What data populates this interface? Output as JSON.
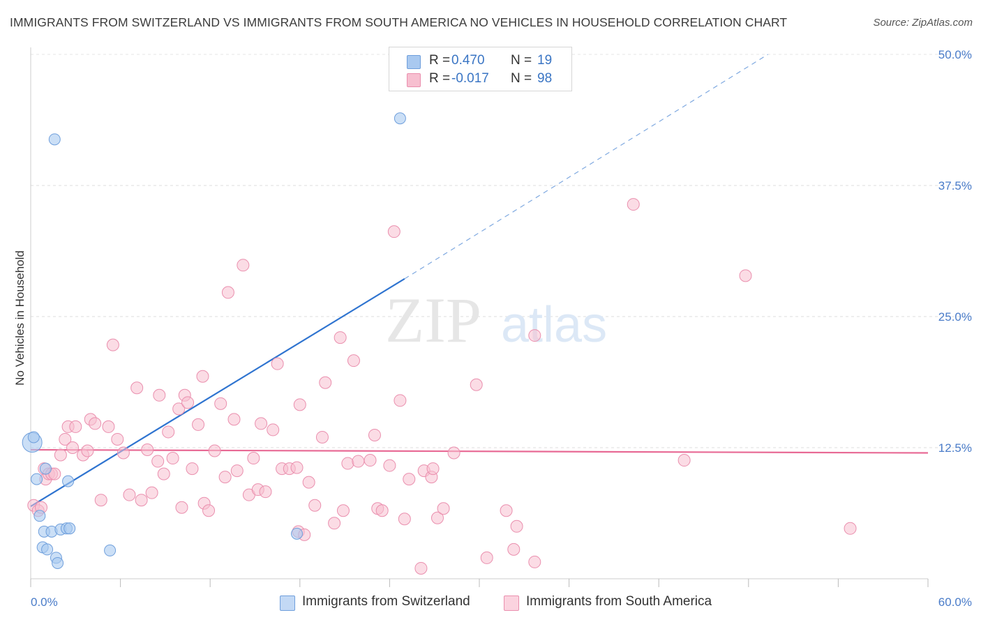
{
  "title": "IMMIGRANTS FROM SWITZERLAND VS IMMIGRANTS FROM SOUTH AMERICA NO VEHICLES IN HOUSEHOLD CORRELATION CHART",
  "source": "Source: ZipAtlas.com",
  "watermark": {
    "zip": "ZIP",
    "atlas": "atlas"
  },
  "legend": {
    "rows": [
      {
        "r_label": "R =",
        "r_value": "0.470",
        "n_label": "N =",
        "n_value": "19",
        "color": "#a9c9f0",
        "border": "#6f9fdc"
      },
      {
        "r_label": "R =",
        "r_value": "-0.017",
        "n_label": "N =",
        "n_value": "98",
        "color": "#f7bfd0",
        "border": "#ea8fae"
      }
    ]
  },
  "bottom_legend": [
    {
      "label": "Immigrants from Switzerland",
      "color": "#c3d9f5",
      "border": "#6f9fdc"
    },
    {
      "label": "Immigrants from South America",
      "color": "#fbd3df",
      "border": "#ea8fae"
    }
  ],
  "chart_data": {
    "type": "scatter",
    "title": "IMMIGRANTS FROM SWITZERLAND VS IMMIGRANTS FROM SOUTH AMERICA NO VEHICLES IN HOUSEHOLD CORRELATION CHART",
    "xlabel": "",
    "ylabel": "No Vehicles in Household",
    "xlim": [
      0,
      60
    ],
    "ylim": [
      0,
      50
    ],
    "x_tick_labels": [
      "0.0%",
      "60.0%"
    ],
    "y_ticks": [
      12.5,
      25.0,
      37.5,
      50.0
    ],
    "y_tick_labels": [
      "12.5%",
      "25.0%",
      "37.5%",
      "50.0%"
    ],
    "grid": "horizontal dashed",
    "legend_position": "top-center",
    "series": [
      {
        "name": "Immigrants from Switzerland",
        "color": "#6f9fdc",
        "fill": "#a9c9f0",
        "points": [
          [
            0.1,
            13.0
          ],
          [
            0.2,
            13.5
          ],
          [
            0.4,
            9.5
          ],
          [
            0.6,
            6.0
          ],
          [
            0.8,
            3.0
          ],
          [
            0.9,
            4.5
          ],
          [
            1.0,
            10.5
          ],
          [
            1.1,
            2.8
          ],
          [
            1.4,
            4.5
          ],
          [
            1.7,
            2.0
          ],
          [
            1.8,
            1.5
          ],
          [
            2.0,
            4.7
          ],
          [
            2.4,
            4.8
          ],
          [
            2.5,
            9.3
          ],
          [
            2.6,
            4.8
          ],
          [
            5.3,
            2.7
          ],
          [
            17.8,
            4.3
          ],
          [
            1.6,
            41.9
          ],
          [
            24.7,
            43.9
          ]
        ],
        "trend": {
          "x": [
            0,
            25
          ],
          "y": [
            6.9,
            28.6
          ],
          "dashed_extension_to": [
            49.3,
            50.0
          ]
        }
      },
      {
        "name": "Immigrants from South America",
        "color": "#ea8fae",
        "fill": "#f7bfd0",
        "points": [
          [
            0.2,
            7.0
          ],
          [
            0.5,
            6.5
          ],
          [
            0.7,
            6.8
          ],
          [
            0.9,
            10.5
          ],
          [
            1.0,
            9.5
          ],
          [
            1.2,
            10.0
          ],
          [
            1.4,
            10.0
          ],
          [
            1.6,
            10.0
          ],
          [
            2.0,
            11.8
          ],
          [
            2.3,
            13.3
          ],
          [
            2.5,
            14.5
          ],
          [
            2.8,
            12.5
          ],
          [
            3.0,
            14.5
          ],
          [
            3.5,
            11.8
          ],
          [
            3.8,
            12.2
          ],
          [
            4.0,
            15.2
          ],
          [
            4.3,
            14.8
          ],
          [
            4.7,
            7.5
          ],
          [
            5.2,
            14.5
          ],
          [
            5.5,
            22.3
          ],
          [
            5.8,
            13.3
          ],
          [
            6.2,
            12.0
          ],
          [
            6.6,
            8.0
          ],
          [
            7.1,
            18.2
          ],
          [
            7.4,
            7.5
          ],
          [
            7.8,
            12.3
          ],
          [
            8.1,
            8.2
          ],
          [
            8.5,
            11.2
          ],
          [
            8.6,
            17.5
          ],
          [
            8.9,
            10.0
          ],
          [
            9.2,
            14.0
          ],
          [
            9.5,
            11.5
          ],
          [
            9.9,
            16.2
          ],
          [
            10.1,
            6.8
          ],
          [
            10.3,
            17.5
          ],
          [
            10.5,
            16.8
          ],
          [
            10.8,
            10.5
          ],
          [
            11.2,
            14.7
          ],
          [
            11.5,
            19.3
          ],
          [
            11.6,
            7.2
          ],
          [
            11.9,
            6.5
          ],
          [
            12.3,
            12.2
          ],
          [
            12.7,
            16.7
          ],
          [
            13.0,
            9.7
          ],
          [
            13.2,
            27.3
          ],
          [
            13.6,
            15.2
          ],
          [
            13.8,
            10.3
          ],
          [
            14.2,
            29.9
          ],
          [
            14.6,
            8.0
          ],
          [
            14.9,
            11.5
          ],
          [
            15.2,
            8.5
          ],
          [
            15.4,
            14.8
          ],
          [
            15.7,
            8.3
          ],
          [
            16.2,
            14.2
          ],
          [
            16.5,
            20.5
          ],
          [
            16.8,
            10.5
          ],
          [
            17.3,
            10.5
          ],
          [
            17.8,
            10.6
          ],
          [
            17.9,
            4.5
          ],
          [
            18.0,
            16.6
          ],
          [
            18.3,
            4.2
          ],
          [
            18.6,
            9.2
          ],
          [
            19.0,
            7.0
          ],
          [
            19.5,
            13.5
          ],
          [
            19.7,
            18.7
          ],
          [
            20.3,
            5.3
          ],
          [
            20.7,
            23.0
          ],
          [
            20.9,
            6.5
          ],
          [
            21.2,
            11.0
          ],
          [
            21.6,
            20.8
          ],
          [
            21.9,
            11.2
          ],
          [
            22.7,
            11.3
          ],
          [
            23.0,
            13.7
          ],
          [
            23.2,
            6.7
          ],
          [
            23.5,
            6.5
          ],
          [
            24.0,
            10.8
          ],
          [
            24.3,
            33.1
          ],
          [
            24.7,
            17.0
          ],
          [
            25.0,
            5.7
          ],
          [
            25.3,
            9.5
          ],
          [
            26.1,
            1.0
          ],
          [
            26.3,
            10.3
          ],
          [
            26.8,
            9.7
          ],
          [
            26.9,
            10.5
          ],
          [
            27.2,
            5.8
          ],
          [
            27.6,
            6.7
          ],
          [
            28.3,
            12.0
          ],
          [
            29.8,
            18.5
          ],
          [
            30.5,
            2.0
          ],
          [
            31.8,
            6.5
          ],
          [
            32.3,
            2.8
          ],
          [
            32.5,
            5.0
          ],
          [
            33.7,
            23.2
          ],
          [
            33.7,
            1.6
          ],
          [
            40.3,
            35.7
          ],
          [
            43.7,
            11.3
          ],
          [
            47.8,
            28.9
          ],
          [
            54.8,
            4.8
          ]
        ],
        "trend": {
          "x": [
            0,
            60
          ],
          "y": [
            12.3,
            12.0
          ]
        }
      }
    ]
  }
}
